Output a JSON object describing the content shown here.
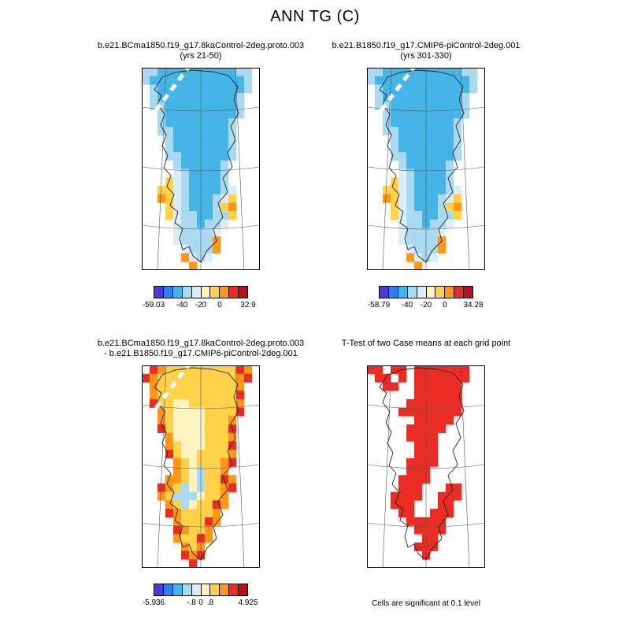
{
  "main_title": "ANN TG (C)",
  "palette": {
    "B": "#4a3bd4",
    "b": "#45b4e6",
    "l": "#a9daf2",
    "p": "#dcedf8",
    "c": "#fdf2c0",
    "y": "#ffd24a",
    "o": "#ff9617",
    "r": "#ea2d24",
    "R": "#b5121b"
  },
  "chart_data": {
    "type": "map",
    "region": "Greenland polar-projection grid maps",
    "variable": "ANN TG (C)",
    "panels": [
      {
        "id": "case1",
        "title": "b.e21.BCma1850.f19_g17.8kaControl-2deg.proto.003",
        "subtitle": "(yrs 21-50)",
        "colorbar": {
          "colors": [
            "#4a3bd4",
            "#2f7df0",
            "#45b4e6",
            "#a9daf2",
            "#dcedf8",
            "#fdf2c0",
            "#ffd24a",
            "#ff9617",
            "#ea2d24",
            "#b5121b"
          ],
          "ticks": [
            {
              "label": "-59.03",
              "pos": 0
            },
            {
              "label": "-40",
              "pos": 0.3
            },
            {
              "label": "-20",
              "pos": 0.5
            },
            {
              "label": "0",
              "pos": 0.7
            },
            {
              "label": "32.9",
              "pos": 1
            }
          ]
        },
        "grid": [
          "llbbbbbbbbbbll.",
          "lbbbbbbbbbbbbl.",
          ".lbbbbbbbbbbbl.",
          ".lbbbbbbbbbbl..",
          ".llbbbbbbbbbl..",
          "..lbbbbbbbbbl..",
          "..lbbbbbbbbl...",
          "..llbbbbbbbl...",
          "...lbbbbbbbl...",
          "...lbbbbbbbl...",
          "...llbbbbbbl...",
          "....lbbbbbl....",
          "....plbbbbl....",
          "...yplbbbbl....",
          "..yyplbbbblp...",
          "..oyplbbblpy...",
          "...yplbbblyo...",
          "...ypllbblly...",
          "....pllbllp....",
          "....pllllp.....",
          "....pllllo.....",
          ".....plllo.....",
          ".....oplp......",
          "......o........"
        ]
      },
      {
        "id": "case2",
        "title": "b.e21.B1850.f19_g17.CMIP6-piControl-2deg.001",
        "subtitle": "(yrs 301-330)",
        "colorbar": {
          "colors": [
            "#4a3bd4",
            "#2f7df0",
            "#45b4e6",
            "#a9daf2",
            "#dcedf8",
            "#fdf2c0",
            "#ffd24a",
            "#ff9617",
            "#ea2d24",
            "#b5121b"
          ],
          "ticks": [
            {
              "label": "-58.79",
              "pos": 0
            },
            {
              "label": "-40",
              "pos": 0.3
            },
            {
              "label": "-20",
              "pos": 0.5
            },
            {
              "label": "0",
              "pos": 0.7
            },
            {
              "label": "34.28",
              "pos": 1
            }
          ]
        },
        "grid": [
          "llbbbbbbbbbbll.",
          "lbbbbbbbbbbbbl.",
          ".lbbbbbbbbbbbl.",
          ".lbbbbbbbbbbl..",
          ".llbbbbbbbbbl..",
          "..lbbbbbbbbbl..",
          "..lbbbbbbbbl...",
          "..llbbbbbbbl...",
          "...lbbbbbbbl...",
          "...lbbbbbbbl...",
          "...llbbbbbbl...",
          "....lbbbbbl....",
          "....plbbbbl....",
          "...yplbbbbl....",
          "..yyplbbbblp...",
          "..oyplbbblpy...",
          "...yplbbblyo...",
          "...ypllbblly...",
          "....pllbllp....",
          "....pllllp.....",
          "....pllllo.....",
          ".....plllo.....",
          ".....oplp......",
          "......o........"
        ]
      },
      {
        "id": "difference",
        "title": "b.e21.BCma1850.f19_g17.8kaControl-2deg.proto.003",
        "subtitle": "- b.e21.B1850.f19_g17.CMIP6-piControl-2deg.001",
        "colorbar": {
          "colors": [
            "#4a3bd4",
            "#2f7df0",
            "#45b4e6",
            "#a9daf2",
            "#dcedf8",
            "#fdf2c0",
            "#ffd24a",
            "#ff9617",
            "#ea2d24",
            "#b5121b"
          ],
          "ticks": [
            {
              "label": "-5.936",
              "pos": 0
            },
            {
              "label": "-.8",
              "pos": 0.4
            },
            {
              "label": "0",
              "pos": 0.5
            },
            {
              "label": ".8",
              "pos": 0.6
            },
            {
              "label": "4.925",
              "pos": 1
            }
          ]
        },
        "grid": [
          ".royyyyyyyyyro.",
          "royyyyyyyyyyor.",
          ".oyyyyyyyyyyo..",
          ".oyyyyyyyyyyr..",
          ".ryyccyyyyyyo..",
          "..oyccccyyyyr..",
          "..oyccccyyyo...",
          "..ryccccyyyr...",
          "...occccyyyo...",
          "...oycccyyyr...",
          "...ryccyyyyo...",
          "....oycyyyor...",
          "....oyclyyo....",
          "...ooyclyyro...",
          "..roylclyyor...",
          "..oylllcyyo....",
          "...oylcyyro....",
          "...royyyyo.....",
          "....oyyyro.....",
          "....royyo......",
          "....oyyro......",
          ".....oyo.......",
          ".....ror.......",
          "......r........"
        ]
      },
      {
        "id": "ttest",
        "title": "T-Test of two Case means at each grid point",
        "subtitle": "",
        "note": "Cells are significant at 0.1 level",
        "grid": [
          "rr.rr.rrrrrrr..",
          ".rr.r.rrrrrrr..",
          "..rr..rrrrrr...",
          "......rrrrrr...",
          ".....rrrrrrr...",
          "....rrrrrrrr...",
          "......rrrrr....",
          ".....rrrrr.....",
          ".....rrrr......",
          "......rrr......",
          "......rrr......",
          ".....rrrr......",
          ".....rrr.......",
          "....rrrr.......",
          "....rrr...rr...",
          "...rrrr..rrr...",
          "...rrr...rr....",
          "....rr..rrr....",
          ".....rrrrr.....",
          "......rrrr.....",
          ".......rr......",
          "......rrr......",
          ".......r.......",
          "..............."
        ]
      }
    ]
  }
}
